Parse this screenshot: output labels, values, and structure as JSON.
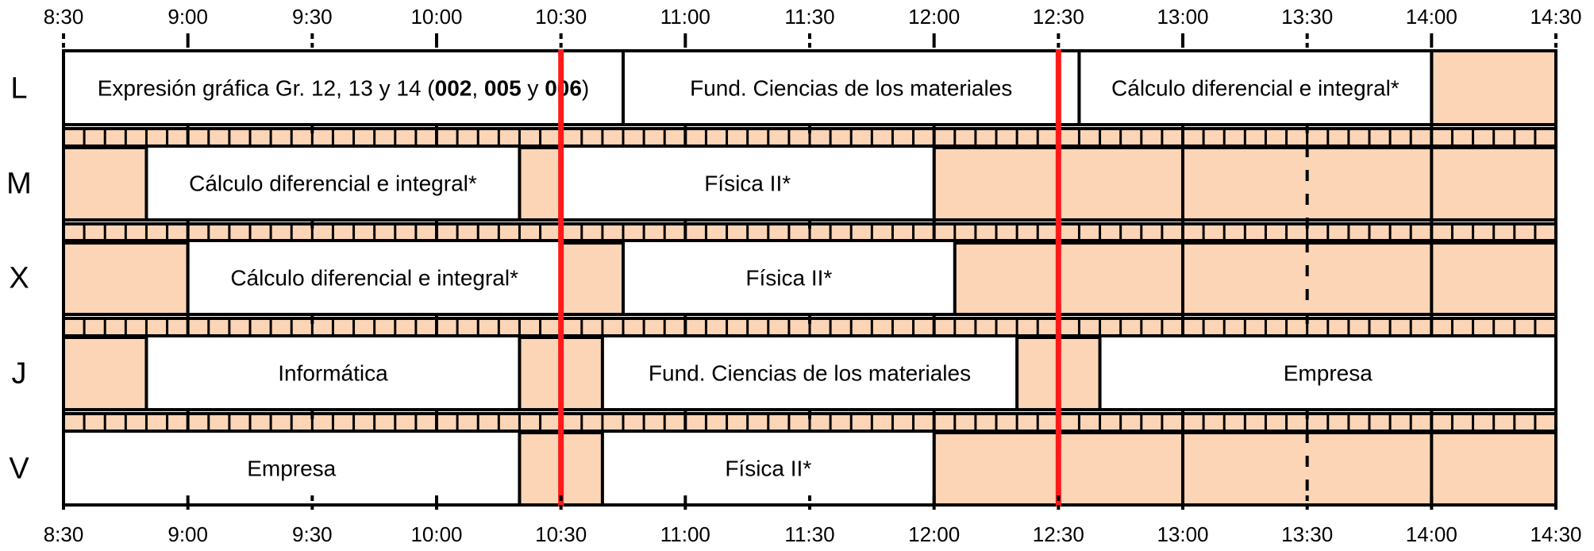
{
  "time_axis": {
    "start": "8:30",
    "end": "14:30",
    "ticks": [
      "8:30",
      "9:00",
      "9:30",
      "10:00",
      "10:30",
      "11:00",
      "11:30",
      "12:00",
      "12:30",
      "13:00",
      "13:30",
      "14:00",
      "14:30"
    ]
  },
  "days": [
    {
      "label": "L",
      "classes": [
        {
          "start": "8:30",
          "end": "10:45",
          "label_parts": [
            {
              "text": "Expresión gráfica Gr. 12, 13 y 14 (",
              "bold": false
            },
            {
              "text": "002",
              "bold": true
            },
            {
              "text": ", ",
              "bold": false
            },
            {
              "text": "005",
              "bold": true
            },
            {
              "text": " y ",
              "bold": false
            },
            {
              "text": "006",
              "bold": true
            },
            {
              "text": ")",
              "bold": false
            }
          ]
        },
        {
          "start": "10:45",
          "end": "12:35",
          "label_parts": [
            {
              "text": "Fund. Ciencias de los materiales",
              "bold": false
            }
          ]
        },
        {
          "start": "12:35",
          "end": "14:00",
          "label_parts": [
            {
              "text": "Cálculo diferencial e integral*",
              "bold": false
            }
          ]
        }
      ]
    },
    {
      "label": "M",
      "classes": [
        {
          "start": "8:50",
          "end": "10:20",
          "label_parts": [
            {
              "text": "Cálculo diferencial e integral*",
              "bold": false
            }
          ]
        },
        {
          "start": "10:30",
          "end": "12:00",
          "label_parts": [
            {
              "text": "Física II*",
              "bold": false
            }
          ]
        }
      ]
    },
    {
      "label": "X",
      "classes": [
        {
          "start": "9:00",
          "end": "10:30",
          "label_parts": [
            {
              "text": "Cálculo diferencial e integral*",
              "bold": false
            }
          ]
        },
        {
          "start": "10:45",
          "end": "12:05",
          "label_parts": [
            {
              "text": "Física II*",
              "bold": false
            }
          ]
        }
      ]
    },
    {
      "label": "J",
      "classes": [
        {
          "start": "8:50",
          "end": "10:20",
          "label_parts": [
            {
              "text": "Informática",
              "bold": false
            }
          ]
        },
        {
          "start": "10:40",
          "end": "12:20",
          "label_parts": [
            {
              "text": "Fund. Ciencias de los materiales",
              "bold": false
            }
          ]
        },
        {
          "start": "12:40",
          "end": "14:30",
          "label_parts": [
            {
              "text": "Empresa",
              "bold": false
            }
          ]
        }
      ]
    },
    {
      "label": "V",
      "classes": [
        {
          "start": "8:30",
          "end": "10:20",
          "label_parts": [
            {
              "text": "Empresa",
              "bold": false
            }
          ]
        },
        {
          "start": "10:40",
          "end": "12:00",
          "label_parts": [
            {
              "text": "Física II*",
              "bold": false
            }
          ]
        }
      ]
    }
  ],
  "highlight_times": [
    "10:30",
    "12:30"
  ],
  "colors": {
    "free_slot": "#fbd5b5",
    "class_fill": "#ffffff",
    "border": "#000000",
    "highlight": "#ff1a1a"
  }
}
